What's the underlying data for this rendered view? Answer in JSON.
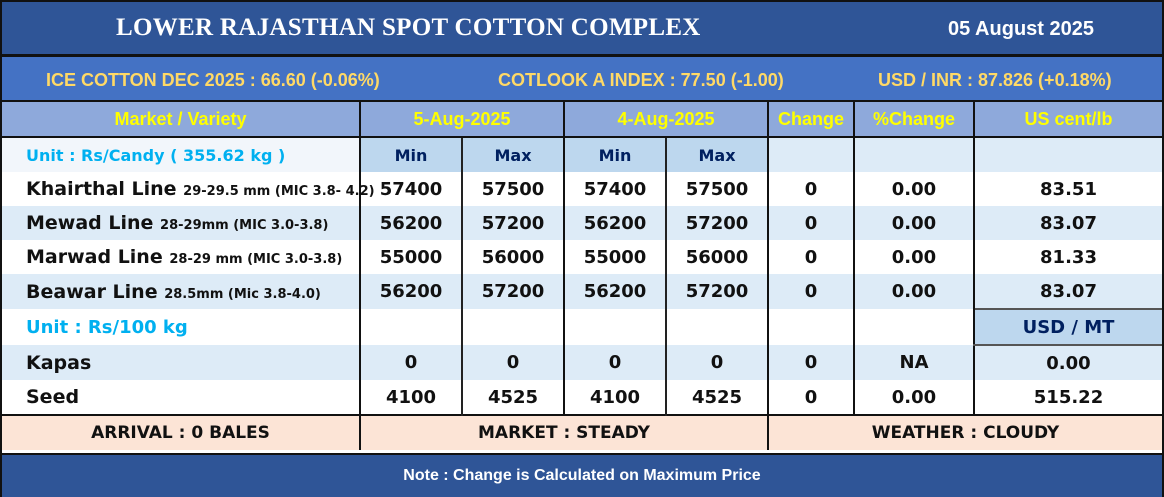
{
  "title": "LOWER RAJASTHAN SPOT COTTON COMPLEX",
  "date": "05 August 2025",
  "ticker": [
    "ICE COTTON DEC 2025 : 66.60 (-0.06%)",
    "COTLOOK A INDEX : 77.50 (-1.00)",
    "USD / INR : 87.826 (+0.18%)"
  ],
  "headers": {
    "market": "Market / Variety",
    "date1": "5-Aug-2025",
    "date2": "4-Aug-2025",
    "change": "Change",
    "pct_change": "%Change",
    "us_cent": "US cent/lb",
    "min": "Min",
    "max": "Max"
  },
  "unit1": "Unit : Rs/Candy ( 355.62 kg )",
  "cotton_rows": [
    {
      "name": "Khairthal Line",
      "spec": "29-29.5 mm (MIC 3.8- 4.2)",
      "min1": "57400",
      "max1": "57500",
      "min2": "57400",
      "max2": "57500",
      "change": "0",
      "pct": "0.00",
      "usd": "83.51"
    },
    {
      "name": "Mewad Line",
      "spec": "28-29mm (MIC 3.0-3.8)",
      "min1": "56200",
      "max1": "57200",
      "min2": "56200",
      "max2": "57200",
      "change": "0",
      "pct": "0.00",
      "usd": "83.07"
    },
    {
      "name": "Marwad Line",
      "spec": "28-29 mm (MIC 3.0-3.8)",
      "min1": "55000",
      "max1": "56000",
      "min2": "55000",
      "max2": "56000",
      "change": "0",
      "pct": "0.00",
      "usd": "81.33"
    },
    {
      "name": "Beawar Line",
      "spec": "28.5mm (Mic 3.8-4.0)",
      "min1": "56200",
      "max1": "57200",
      "min2": "56200",
      "max2": "57200",
      "change": "0",
      "pct": "0.00",
      "usd": "83.07"
    }
  ],
  "unit2": "Unit : Rs/100 kg",
  "usd_mt": "USD / MT",
  "other_rows": [
    {
      "name": "Kapas",
      "min1": "0",
      "max1": "0",
      "min2": "0",
      "max2": "0",
      "change": "0",
      "pct": "NA",
      "usd": "0.00"
    },
    {
      "name": "Seed",
      "min1": "4100",
      "max1": "4525",
      "min2": "4100",
      "max2": "4525",
      "change": "0",
      "pct": "0.00",
      "usd": "515.22"
    }
  ],
  "footer": {
    "arrival": "ARRIVAL : 0 BALES",
    "market": "MARKET : STEADY",
    "weather": "WEATHER : CLOUDY"
  },
  "note": "Note : Change is Calculated on Maximum Price"
}
